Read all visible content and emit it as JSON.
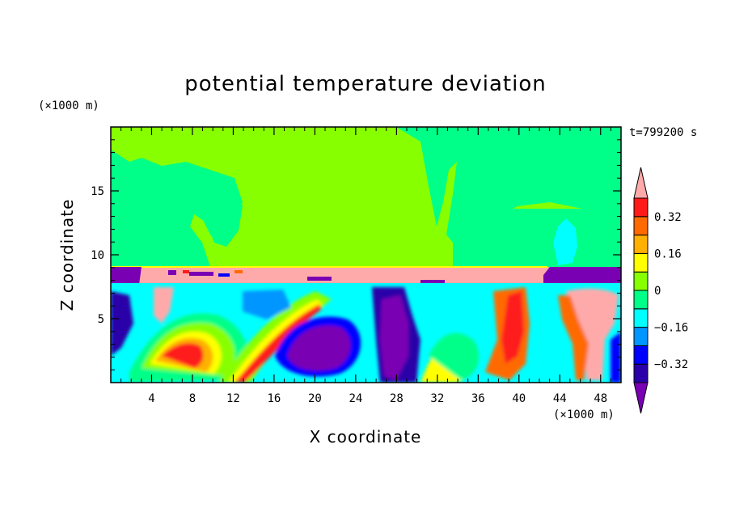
{
  "chart_data": {
    "type": "heatmap",
    "title": "potential temperature deviation",
    "xlabel": "X coordinate",
    "ylabel": "Z coordinate",
    "x_unit": "(×1000 m)",
    "y_unit": "(×1000 m)",
    "time_label": "t=799200 s",
    "xlim": [
      0,
      50
    ],
    "ylim": [
      0,
      20
    ],
    "xticks": [
      4,
      8,
      12,
      16,
      20,
      24,
      28,
      32,
      36,
      40,
      44,
      48
    ],
    "yticks": [
      5,
      10,
      15
    ],
    "colorbar": {
      "levels": [
        -0.4,
        -0.32,
        -0.24,
        -0.16,
        -0.08,
        0,
        0.08,
        0.16,
        0.24,
        0.32,
        0.4
      ],
      "colors": [
        "#7a00b3",
        "#2a00a8",
        "#0000ff",
        "#0096ff",
        "#00ffff",
        "#00ff88",
        "#88ff00",
        "#ffff00",
        "#ffb000",
        "#ff6a00",
        "#ff1a1a",
        "#ffaaaa"
      ],
      "labels": [
        {
          "value": 0.32,
          "text": "0.32"
        },
        {
          "value": 0.16,
          "text": "0.16"
        },
        {
          "value": 0,
          "text": "0"
        },
        {
          "value": -0.16,
          "text": "−0.16"
        },
        {
          "value": -0.32,
          "text": "−0.32"
        }
      ],
      "extend": "both"
    },
    "field": {
      "upper_layer": {
        "z_range": [
          9.0,
          20
        ],
        "dominant_value": 0.04,
        "embedded_value": -0.04
      },
      "inversion_layer": {
        "z_range": [
          7.5,
          9.0
        ],
        "dominant_value": 0.45,
        "x_range": [
          3,
          43
        ]
      },
      "cold_pool_cap": {
        "z_range": [
          7.5,
          9.0
        ],
        "x_range": [
          43,
          50
        ],
        "value": -0.45
      },
      "lower_layer": {
        "z_range": [
          0,
          7.5
        ],
        "value_range": [
          -0.45,
          0.45
        ]
      }
    }
  }
}
